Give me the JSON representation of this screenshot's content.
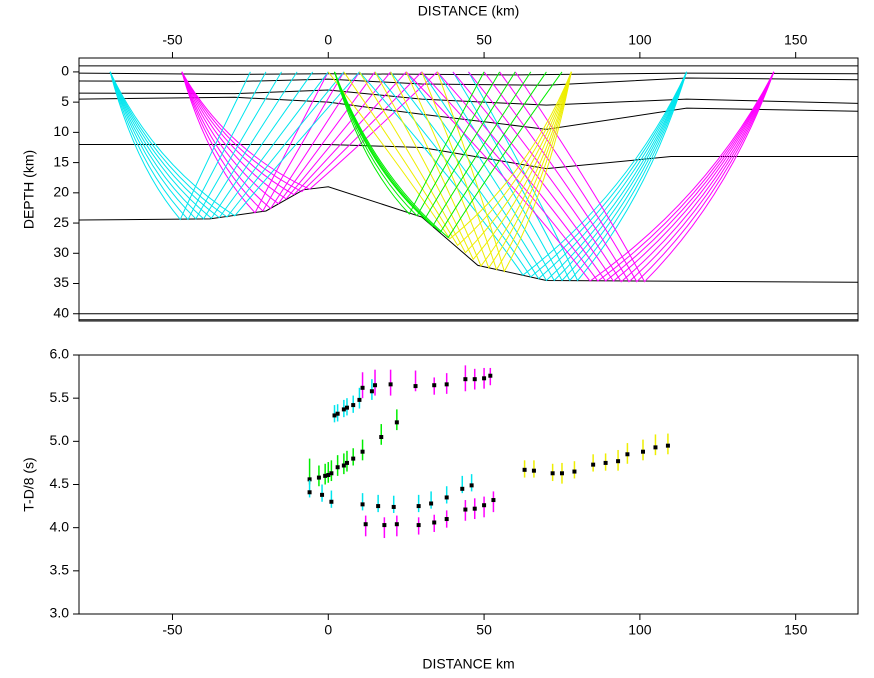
{
  "chart_data": [
    {
      "type": "ray",
      "xlabel": "DISTANCE (km)",
      "ylabel": "DEPTH (km)",
      "xlim": [
        -80,
        170
      ],
      "ylim": [
        -2.3,
        41.2
      ],
      "xticks": [
        -50,
        0,
        50,
        100,
        150
      ],
      "yticks": [
        0,
        5,
        10,
        15,
        20,
        25,
        30,
        35,
        40
      ],
      "layers": [
        {
          "x": [
            -80,
            170
          ],
          "z": [
            -1,
            -1
          ]
        },
        {
          "x": [
            -80,
            -30,
            0,
            60,
            115,
            170
          ],
          "z": [
            0.2,
            0.4,
            0.3,
            0.5,
            0.2,
            0.3
          ]
        },
        {
          "x": [
            -80,
            -30,
            0,
            30,
            70,
            115,
            170
          ],
          "z": [
            1.5,
            1.6,
            1.2,
            2,
            2.2,
            1,
            1.3
          ]
        },
        {
          "x": [
            -80,
            -30,
            0,
            30,
            70,
            115,
            170
          ],
          "z": [
            3.5,
            3.6,
            3,
            4.5,
            5.5,
            4.5,
            5.2
          ]
        },
        {
          "x": [
            -80,
            -30,
            0,
            30,
            70,
            115,
            170
          ],
          "z": [
            4.5,
            4.2,
            5,
            7,
            9.5,
            6,
            6.5
          ]
        },
        {
          "x": [
            -80,
            -30,
            0,
            30,
            70,
            110,
            170
          ],
          "z": [
            12,
            12,
            12,
            12.5,
            16,
            14,
            14
          ]
        },
        {
          "x": [
            -80,
            -38,
            -20,
            -8,
            0,
            30,
            48,
            70,
            170
          ],
          "z": [
            24.5,
            24.3,
            23,
            19.5,
            19,
            24,
            32,
            34.5,
            34.8
          ]
        },
        {
          "x": [
            -80,
            170
          ],
          "z": [
            40,
            40
          ]
        },
        {
          "x": [
            -80,
            170
          ],
          "z": [
            41,
            41
          ]
        }
      ],
      "fans": [
        {
          "color": "#ff00ff",
          "shot": -47,
          "receivers": [
            0,
            5,
            10,
            15,
            20,
            25,
            30,
            35
          ],
          "bounce_x": [
            -23.5,
            -21,
            -18.5,
            -16,
            -13.5,
            -11,
            -8.5,
            -6
          ],
          "bounce_z": [
            23.3,
            23,
            22.6,
            21.8,
            21,
            20.3,
            19.8,
            19.4
          ]
        },
        {
          "color": "#00e5ee",
          "shot": -70,
          "receivers": [
            -25,
            -20,
            -15,
            -10,
            -5,
            0,
            5,
            10
          ],
          "bounce_x": [
            -47.5,
            -45,
            -42.5,
            -40,
            -37.5,
            -35,
            -32.5,
            -30
          ],
          "bounce_z": [
            24.4,
            24.4,
            24.3,
            24.3,
            24.2,
            24.1,
            24,
            23.8
          ]
        },
        {
          "color": "#00e5ee",
          "shot": 115,
          "receivers": [
            10,
            15,
            20,
            25,
            30,
            35,
            40,
            45
          ],
          "bounce_x": [
            62.5,
            65,
            67.5,
            70,
            72.5,
            75,
            77.5,
            80
          ],
          "bounce_z": [
            33.6,
            33.9,
            34.2,
            34.5,
            34.5,
            34.5,
            34.5,
            34.5
          ]
        },
        {
          "color": "#ff00ff",
          "shot": 143,
          "receivers": [
            25,
            30,
            35,
            40,
            45,
            50,
            55,
            60
          ],
          "bounce_x": [
            84,
            86.5,
            89,
            91.5,
            94,
            96.5,
            99,
            101.5
          ],
          "bounce_z": [
            34.6,
            34.6,
            34.6,
            34.6,
            34.7,
            34.7,
            34.7,
            34.7
          ]
        },
        {
          "color": "#eeee00",
          "shot": 78,
          "receivers": [
            0,
            5,
            10,
            15,
            20,
            25,
            30,
            35
          ],
          "bounce_x": [
            39,
            41.5,
            44,
            46.5,
            49,
            51.5,
            54,
            56.5
          ],
          "bounce_z": [
            27.6,
            28.7,
            29.9,
            31,
            32.1,
            32.4,
            32.7,
            33
          ]
        },
        {
          "color": "#00ee00",
          "shot": 2,
          "receivers": [
            50,
            55,
            60,
            65,
            70,
            75
          ],
          "bounce_x": [
            26,
            28.5,
            31,
            33.5,
            36,
            38.5
          ],
          "bounce_z": [
            23.5,
            23.8,
            24.3,
            25.5,
            26.5,
            27.4
          ]
        }
      ]
    },
    {
      "type": "scatter",
      "xlabel": "DISTANCE  km",
      "ylabel": "T-D/8 (s)",
      "xlim": [
        -80,
        170
      ],
      "ylim": [
        3,
        6
      ],
      "xticks": [
        -50,
        0,
        50,
        100,
        150
      ],
      "yticks": [
        {
          "value": 3,
          "label": "3.0"
        },
        {
          "value": 3.5,
          "label": "3.5"
        },
        {
          "value": 4,
          "label": "4.0"
        },
        {
          "value": 4.5,
          "label": "4.5"
        },
        {
          "value": 5,
          "label": "5.0"
        },
        {
          "value": 5.5,
          "label": "5.5"
        },
        {
          "value": 6,
          "label": "6.0"
        }
      ],
      "series": [
        {
          "color": "#00e5ee",
          "x": [
            2,
            3,
            5,
            6,
            8,
            10,
            14
          ],
          "values": [
            5.32,
            5.33,
            5.38,
            5.4,
            5.43,
            5.5,
            5.6
          ],
          "errors": [
            0.1,
            0.1,
            0.1,
            0.1,
            0.1,
            0.12,
            0.12
          ],
          "calculated": [
            5.3,
            5.32,
            5.37,
            5.39,
            5.42,
            5.48,
            5.58
          ]
        },
        {
          "color": "#ff00ff",
          "x": [
            11,
            15,
            20,
            28,
            34,
            38,
            44,
            47,
            50,
            52
          ],
          "values": [
            5.65,
            5.68,
            5.68,
            5.7,
            5.64,
            5.67,
            5.73,
            5.72,
            5.73,
            5.75
          ],
          "errors": [
            0.15,
            0.15,
            0.15,
            0.12,
            0.1,
            0.12,
            0.15,
            0.12,
            0.12,
            0.1
          ],
          "calculated": [
            5.62,
            5.65,
            5.66,
            5.64,
            5.65,
            5.66,
            5.72,
            5.72,
            5.73,
            5.76
          ]
        },
        {
          "color": "#00ee00",
          "x": [
            -6,
            -3,
            -1,
            0,
            1,
            3,
            5,
            6,
            8,
            11,
            17,
            22
          ],
          "values": [
            4.65,
            4.6,
            4.62,
            4.64,
            4.66,
            4.72,
            4.74,
            4.77,
            4.82,
            4.9,
            5.08,
            5.25
          ],
          "errors": [
            0.15,
            0.12,
            0.12,
            0.12,
            0.12,
            0.12,
            0.12,
            0.12,
            0.1,
            0.12,
            0.12,
            0.12
          ],
          "calculated": [
            4.56,
            4.58,
            4.6,
            4.61,
            4.63,
            4.7,
            4.72,
            4.75,
            4.8,
            4.88,
            5.05,
            5.22
          ]
        },
        {
          "color": "#00e5ee",
          "x": [
            -6,
            -2,
            1,
            11,
            16,
            21,
            29,
            33,
            38,
            43,
            46
          ],
          "values": [
            4.45,
            4.4,
            4.33,
            4.3,
            4.28,
            4.27,
            4.28,
            4.32,
            4.38,
            4.5,
            4.52
          ],
          "errors": [
            0.1,
            0.1,
            0.1,
            0.1,
            0.1,
            0.1,
            0.1,
            0.1,
            0.1,
            0.1,
            0.1
          ],
          "calculated": [
            4.41,
            4.38,
            4.3,
            4.27,
            4.25,
            4.24,
            4.25,
            4.28,
            4.35,
            4.45,
            4.49
          ]
        },
        {
          "color": "#ff00ff",
          "x": [
            12,
            18,
            22,
            29,
            34,
            38,
            44,
            47,
            50,
            53
          ],
          "values": [
            4.02,
            4.0,
            4.02,
            4.02,
            4.05,
            4.1,
            4.2,
            4.22,
            4.24,
            4.3
          ],
          "errors": [
            0.12,
            0.12,
            0.12,
            0.1,
            0.1,
            0.1,
            0.12,
            0.12,
            0.12,
            0.12
          ],
          "calculated": [
            4.04,
            4.03,
            4.04,
            4.03,
            4.06,
            4.1,
            4.21,
            4.22,
            4.26,
            4.32
          ]
        },
        {
          "color": "#eeee00",
          "x": [
            63,
            66,
            72,
            75,
            79,
            85,
            89,
            93,
            96,
            101,
            105,
            109
          ],
          "values": [
            4.68,
            4.68,
            4.64,
            4.63,
            4.67,
            4.75,
            4.76,
            4.78,
            4.86,
            4.9,
            4.96,
            4.97
          ],
          "errors": [
            0.1,
            0.1,
            0.1,
            0.12,
            0.1,
            0.1,
            0.1,
            0.12,
            0.12,
            0.12,
            0.12,
            0.12
          ],
          "calculated": [
            4.67,
            4.66,
            4.63,
            4.63,
            4.65,
            4.73,
            4.75,
            4.77,
            4.85,
            4.88,
            4.93,
            4.95
          ]
        }
      ]
    }
  ]
}
